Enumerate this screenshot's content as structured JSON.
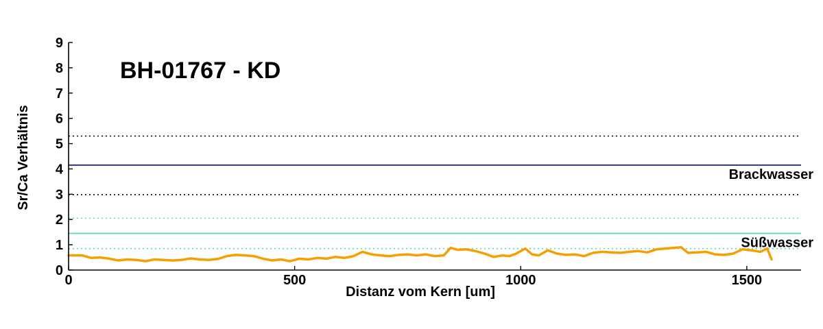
{
  "chart_data": {
    "type": "line",
    "title": "BH-01767 - KD",
    "xlabel": "Distanz vom Kern [um]",
    "ylabel": "Sr/Ca Verhältnis",
    "xlim": [
      0,
      1620
    ],
    "ylim": [
      0,
      9
    ],
    "xticks": [
      0,
      500,
      1000,
      1500
    ],
    "yticks": [
      0,
      1,
      2,
      3,
      4,
      5,
      6,
      7,
      8,
      9
    ],
    "grid": false,
    "reference_lines": [
      {
        "y": 5.3,
        "style": "dotted",
        "color": "#000000"
      },
      {
        "y": 4.15,
        "style": "solid",
        "color": "#1a1f6e",
        "label": "Brackwasser"
      },
      {
        "y": 2.98,
        "style": "dotted",
        "color": "#000000"
      },
      {
        "y": 2.05,
        "style": "dotted",
        "color": "#5cd6b8"
      },
      {
        "y": 1.45,
        "style": "solid",
        "color": "#5cd6b8",
        "label": "Süßwasser"
      },
      {
        "y": 0.85,
        "style": "dotted",
        "color": "#5cd6b8"
      }
    ],
    "series": [
      {
        "color": "#f5a000",
        "x": [
          0,
          30,
          50,
          70,
          90,
          110,
          130,
          150,
          170,
          190,
          210,
          230,
          250,
          270,
          290,
          310,
          330,
          350,
          370,
          390,
          410,
          430,
          450,
          470,
          490,
          510,
          530,
          550,
          570,
          590,
          610,
          630,
          650,
          670,
          690,
          710,
          730,
          750,
          770,
          790,
          810,
          830,
          845,
          860,
          880,
          900,
          920,
          940,
          960,
          975,
          990,
          1010,
          1025,
          1040,
          1060,
          1080,
          1100,
          1120,
          1140,
          1160,
          1180,
          1200,
          1220,
          1240,
          1260,
          1280,
          1300,
          1320,
          1340,
          1355,
          1370,
          1390,
          1410,
          1430,
          1450,
          1470,
          1490,
          1510,
          1530,
          1545,
          1555
        ],
        "y": [
          0.58,
          0.58,
          0.48,
          0.5,
          0.45,
          0.38,
          0.42,
          0.4,
          0.35,
          0.42,
          0.4,
          0.38,
          0.4,
          0.46,
          0.42,
          0.4,
          0.44,
          0.55,
          0.6,
          0.58,
          0.55,
          0.45,
          0.38,
          0.42,
          0.35,
          0.45,
          0.42,
          0.48,
          0.45,
          0.52,
          0.48,
          0.55,
          0.72,
          0.62,
          0.58,
          0.55,
          0.6,
          0.62,
          0.58,
          0.62,
          0.55,
          0.58,
          0.88,
          0.8,
          0.82,
          0.75,
          0.65,
          0.52,
          0.58,
          0.55,
          0.65,
          0.85,
          0.62,
          0.58,
          0.78,
          0.65,
          0.6,
          0.62,
          0.55,
          0.68,
          0.72,
          0.7,
          0.68,
          0.72,
          0.75,
          0.7,
          0.82,
          0.85,
          0.88,
          0.9,
          0.68,
          0.7,
          0.72,
          0.62,
          0.6,
          0.65,
          0.82,
          0.78,
          0.72,
          0.85,
          0.42
        ]
      }
    ]
  }
}
